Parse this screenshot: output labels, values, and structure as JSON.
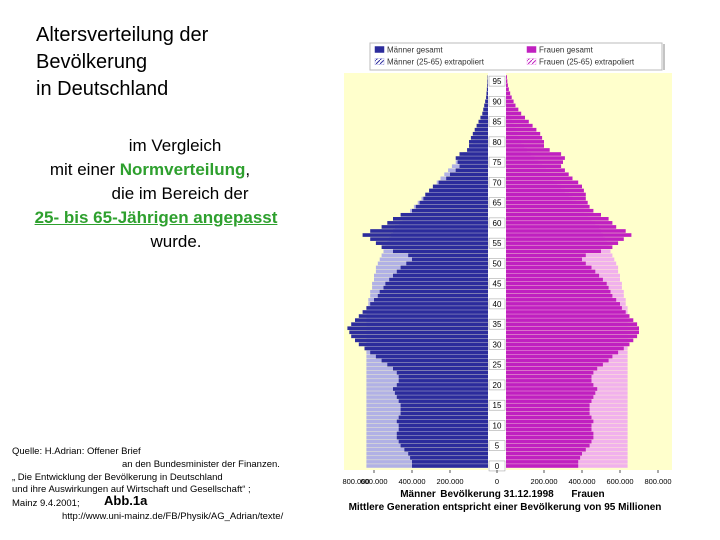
{
  "slide": {
    "title": [
      "Altersverteilung der",
      "Bevölkerung",
      "in Deutschland"
    ],
    "comparison": {
      "line1": "im Vergleich",
      "line2_pre": "mit einer ",
      "line2_em": "Normverteilung",
      "line2_post": ",",
      "line3": "die im Bereich der",
      "line4": "25- bis 65-Jährigen angepasst",
      "line5": "wurde."
    },
    "source": [
      "Quelle: H.Adrian: Offener Brief",
      "an den Bundesminister der Finanzen.",
      "„ Die Entwicklung der Bevölkerung in Deutschland",
      "und ihre Auswirkungen auf Wirtschaft und Gesellschaft“ ;",
      "Mainz 9.4.2001;",
      "Abb.1a",
      "http://www.uni-mainz.de/FB/Physik/AG_Adrian/texte/"
    ]
  },
  "chart_data": {
    "type": "pyramid",
    "subtitle": "Bevölkerung 31.12.1998",
    "left_label": "Männer",
    "right_label": "Frauen",
    "note": "Mittlere Generation entspricht einer Bevölkerung von 95 Millionen",
    "y": [
      0,
      1,
      2,
      3,
      4,
      5,
      6,
      7,
      8,
      9,
      10,
      11,
      12,
      13,
      14,
      15,
      16,
      17,
      18,
      19,
      20,
      21,
      22,
      23,
      24,
      25,
      26,
      27,
      28,
      29,
      30,
      31,
      32,
      33,
      34,
      35,
      36,
      37,
      38,
      39,
      40,
      41,
      42,
      43,
      44,
      45,
      46,
      47,
      48,
      49,
      50,
      51,
      52,
      53,
      54,
      55,
      56,
      57,
      58,
      59,
      60,
      61,
      62,
      63,
      64,
      65,
      66,
      67,
      68,
      69,
      70,
      71,
      72,
      73,
      74,
      75,
      76,
      77,
      78,
      79,
      80,
      81,
      82,
      83,
      84,
      85,
      86,
      87,
      88,
      89,
      90,
      91,
      92,
      93,
      94,
      95,
      96
    ],
    "ylim": [
      -1,
      97
    ],
    "yticks": [
      0,
      5,
      10,
      15,
      20,
      25,
      30,
      35,
      40,
      45,
      50,
      55,
      60,
      65,
      70,
      75,
      80,
      85,
      90,
      95
    ],
    "xlim": [
      -800000,
      800000
    ],
    "xticks": [
      {
        "value": -800000,
        "label": "800.000"
      },
      {
        "value": -600000,
        "label": "600.000"
      },
      {
        "value": -400000,
        "label": "400.000"
      },
      {
        "value": -200000,
        "label": "200.000"
      },
      0,
      {
        "value": 200000,
        "label": "200.000"
      },
      {
        "value": 400000,
        "label": "400.000"
      },
      {
        "value": 600000,
        "label": "600.000"
      },
      {
        "value": 800000,
        "label": "800.000"
      }
    ],
    "series": [
      {
        "name": "Männer (25-65) extrapoliert",
        "side": "left",
        "color": "#a8a8e8",
        "values": [
          640000,
          640000,
          640000,
          640000,
          640000,
          640000,
          640000,
          640000,
          640000,
          640000,
          640000,
          640000,
          640000,
          640000,
          640000,
          640000,
          640000,
          640000,
          640000,
          640000,
          640000,
          640000,
          640000,
          640000,
          640000,
          640000,
          640000,
          640000,
          640000,
          640000,
          640000,
          640000,
          640000,
          640000,
          640000,
          640000,
          640000,
          640000,
          640000,
          640000,
          630000,
          630000,
          620000,
          620000,
          610000,
          610000,
          600000,
          600000,
          590000,
          590000,
          580000,
          570000,
          560000,
          550000,
          540000,
          530000,
          520000,
          510000,
          500000,
          490000,
          470000,
          450000,
          430000,
          410000,
          390000,
          370000,
          350000,
          330000,
          310000,
          290000,
          270000,
          250000,
          230000,
          210000,
          190000,
          170000,
          150000,
          130000,
          110000,
          95000,
          80000,
          70000,
          60000,
          50000,
          40000,
          32000,
          25000,
          19000,
          14000,
          10000,
          7000,
          5000,
          3000,
          2000,
          1000,
          1000,
          0
        ]
      },
      {
        "name": "Frauen (25-65) extrapoliert",
        "side": "right",
        "color": "#f0a8f0",
        "values": [
          640000,
          640000,
          640000,
          640000,
          640000,
          640000,
          640000,
          640000,
          640000,
          640000,
          640000,
          640000,
          640000,
          640000,
          640000,
          640000,
          640000,
          640000,
          640000,
          640000,
          640000,
          640000,
          640000,
          640000,
          640000,
          640000,
          640000,
          640000,
          640000,
          640000,
          640000,
          640000,
          640000,
          640000,
          640000,
          640000,
          640000,
          640000,
          640000,
          640000,
          630000,
          630000,
          620000,
          620000,
          610000,
          610000,
          600000,
          600000,
          590000,
          590000,
          580000,
          570000,
          560000,
          550000,
          540000,
          530000,
          520000,
          510000,
          500000,
          490000,
          470000,
          450000,
          430000,
          410000,
          390000,
          370000,
          350000,
          330000,
          310000,
          290000,
          270000,
          250000,
          230000,
          210000,
          190000,
          170000,
          150000,
          130000,
          110000,
          95000,
          80000,
          70000,
          60000,
          50000,
          40000,
          32000,
          25000,
          19000,
          14000,
          10000,
          7000,
          5000,
          3000,
          2000,
          1000,
          1000,
          0
        ]
      },
      {
        "name": "Männer gesamt",
        "side": "left",
        "color": "#2c2c9c",
        "values": [
          400000,
          400000,
          410000,
          420000,
          440000,
          460000,
          470000,
          480000,
          480000,
          470000,
          470000,
          480000,
          470000,
          460000,
          460000,
          460000,
          470000,
          480000,
          490000,
          500000,
          480000,
          470000,
          470000,
          480000,
          500000,
          530000,
          560000,
          590000,
          620000,
          650000,
          680000,
          700000,
          720000,
          730000,
          740000,
          720000,
          700000,
          680000,
          660000,
          640000,
          620000,
          600000,
          580000,
          570000,
          550000,
          540000,
          520000,
          500000,
          480000,
          460000,
          430000,
          400000,
          420000,
          500000,
          560000,
          590000,
          620000,
          660000,
          620000,
          560000,
          530000,
          500000,
          460000,
          400000,
          380000,
          360000,
          340000,
          330000,
          310000,
          290000,
          260000,
          220000,
          200000,
          170000,
          150000,
          160000,
          170000,
          150000,
          110000,
          100000,
          100000,
          90000,
          80000,
          70000,
          60000,
          50000,
          40000,
          30000,
          25000,
          20000,
          15000,
          10000,
          8000,
          6000,
          4000,
          3000,
          2000
        ]
      },
      {
        "name": "Frauen gesamt",
        "side": "right",
        "color": "#c020c0",
        "values": [
          380000,
          380000,
          390000,
          400000,
          420000,
          440000,
          450000,
          460000,
          460000,
          450000,
          450000,
          460000,
          450000,
          440000,
          440000,
          440000,
          450000,
          460000,
          470000,
          480000,
          460000,
          450000,
          450000,
          460000,
          480000,
          510000,
          540000,
          560000,
          590000,
          620000,
          650000,
          670000,
          690000,
          700000,
          700000,
          690000,
          670000,
          650000,
          630000,
          610000,
          600000,
          580000,
          560000,
          550000,
          540000,
          530000,
          510000,
          490000,
          470000,
          450000,
          420000,
          400000,
          420000,
          500000,
          560000,
          590000,
          620000,
          660000,
          630000,
          580000,
          560000,
          540000,
          500000,
          460000,
          440000,
          430000,
          420000,
          420000,
          410000,
          400000,
          380000,
          350000,
          330000,
          310000,
          290000,
          300000,
          310000,
          290000,
          230000,
          200000,
          200000,
          190000,
          180000,
          160000,
          140000,
          120000,
          100000,
          80000,
          65000,
          50000,
          40000,
          30000,
          22000,
          15000,
          10000,
          7000,
          5000
        ]
      }
    ]
  }
}
